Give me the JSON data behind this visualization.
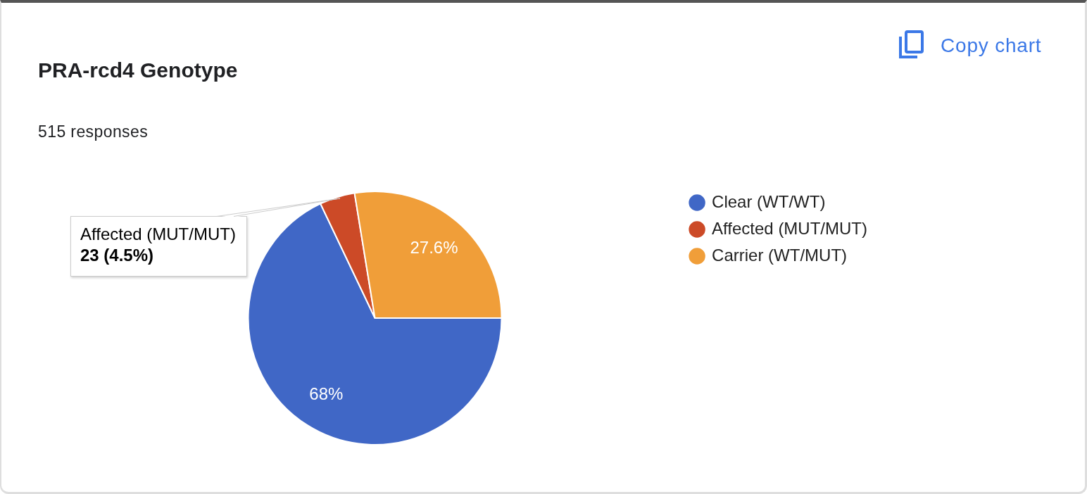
{
  "chart_data": {
    "type": "pie",
    "title": "PRA-rcd4 Genotype",
    "subtitle": "515 responses",
    "categories": [
      "Clear (WT/WT)",
      "Affected (MUT/MUT)",
      "Carrier (WT/MUT)"
    ],
    "values": [
      68,
      4.5,
      27.6
    ],
    "colors": [
      "#4067c6",
      "#cc4a27",
      "#f09e39"
    ],
    "value_labels": [
      "68%",
      null,
      "27.6%"
    ],
    "legend": "right",
    "annotations": [
      "Copy chart",
      "Affected (MUT/MUT)",
      "23 (4.5%)"
    ]
  }
}
